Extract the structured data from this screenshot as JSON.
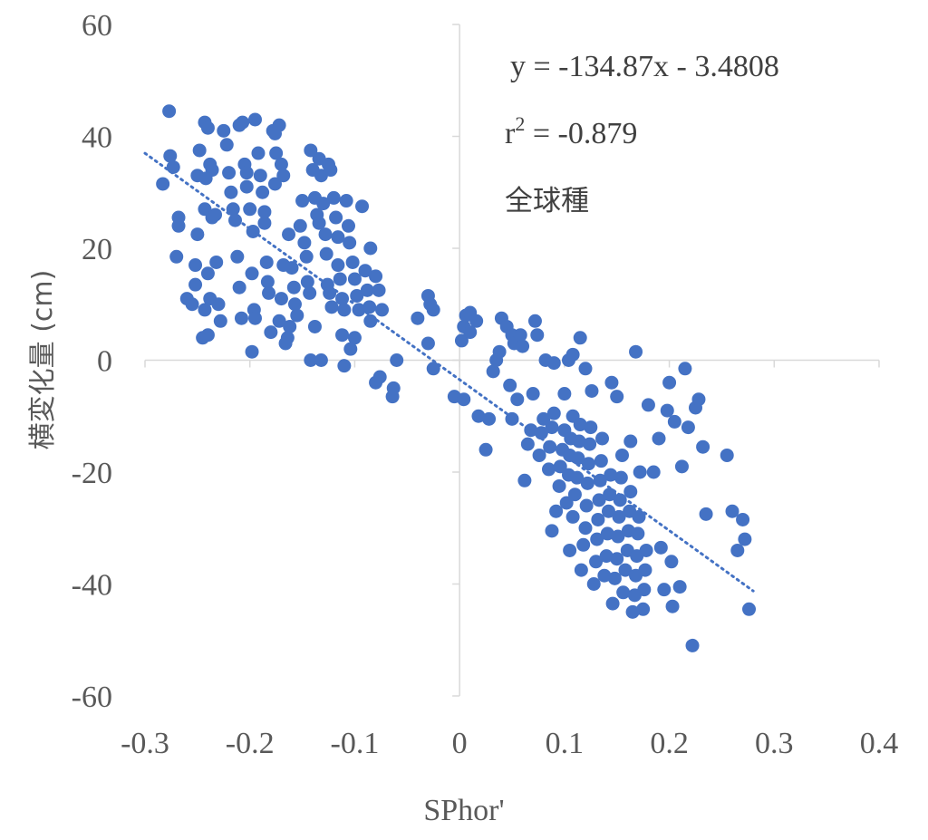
{
  "chart_data": {
    "type": "scatter",
    "title": "",
    "xlabel": "SPhor'",
    "ylabel": "横変化量 (cm)",
    "xlim": [
      -0.3,
      0.4
    ],
    "ylim": [
      -60,
      60
    ],
    "x_ticks": [
      "-0.3",
      "-0.2",
      "-0.1",
      "0",
      "0.1",
      "0.2",
      "0.3",
      "0.4"
    ],
    "y_ticks": [
      "60",
      "40",
      "20",
      "0",
      "-20",
      "-40",
      "-60"
    ],
    "x_tick_values": [
      -0.3,
      -0.2,
      -0.1,
      0,
      0.1,
      0.2,
      0.3,
      0.4
    ],
    "y_tick_values": [
      60,
      40,
      20,
      0,
      -20,
      -40,
      -60
    ],
    "grid": false,
    "marker_color": "#4472C4",
    "trendline": {
      "style": "dotted",
      "color": "#4472C4",
      "slope": -134.87,
      "intercept": -3.4808,
      "x_range": [
        -0.3,
        0.28
      ]
    },
    "annotations": {
      "equation": "y = -134.87x - 3.4808",
      "r_prefix": "r",
      "r_sup": "2",
      "r_value": " = -0.879",
      "label": "全球種"
    },
    "points": [
      [
        -0.277,
        44.5
      ],
      [
        -0.276,
        36.5
      ],
      [
        -0.273,
        34.5
      ],
      [
        -0.283,
        31.5
      ],
      [
        -0.268,
        25.5
      ],
      [
        -0.268,
        24
      ],
      [
        -0.27,
        18.5
      ],
      [
        -0.26,
        11
      ],
      [
        -0.255,
        10
      ],
      [
        -0.252,
        17
      ],
      [
        -0.252,
        13.5
      ],
      [
        -0.25,
        22.5
      ],
      [
        -0.25,
        33
      ],
      [
        -0.248,
        37.5
      ],
      [
        -0.243,
        42.5
      ],
      [
        -0.24,
        41.5
      ],
      [
        -0.238,
        35
      ],
      [
        -0.236,
        34
      ],
      [
        -0.242,
        32.5
      ],
      [
        -0.243,
        27
      ],
      [
        -0.24,
        15.5
      ],
      [
        -0.238,
        11
      ],
      [
        -0.243,
        9
      ],
      [
        -0.245,
        4
      ],
      [
        -0.24,
        4.5
      ],
      [
        -0.236,
        25.5
      ],
      [
        -0.233,
        26
      ],
      [
        -0.232,
        17.5
      ],
      [
        -0.23,
        10
      ],
      [
        -0.228,
        7
      ],
      [
        -0.225,
        41
      ],
      [
        -0.222,
        38.5
      ],
      [
        -0.22,
        33.5
      ],
      [
        -0.218,
        30
      ],
      [
        -0.216,
        27
      ],
      [
        -0.214,
        25
      ],
      [
        -0.212,
        18.5
      ],
      [
        -0.21,
        13
      ],
      [
        -0.208,
        7.5
      ],
      [
        -0.21,
        42
      ],
      [
        -0.207,
        42.5
      ],
      [
        -0.205,
        35
      ],
      [
        -0.203,
        33.5
      ],
      [
        -0.203,
        31
      ],
      [
        -0.2,
        27
      ],
      [
        -0.197,
        23
      ],
      [
        -0.198,
        15.5
      ],
      [
        -0.196,
        9
      ],
      [
        -0.195,
        7.5
      ],
      [
        -0.198,
        1.5
      ],
      [
        -0.195,
        43
      ],
      [
        -0.192,
        37
      ],
      [
        -0.19,
        33
      ],
      [
        -0.188,
        30
      ],
      [
        -0.186,
        26.5
      ],
      [
        -0.186,
        24.5
      ],
      [
        -0.184,
        17.5
      ],
      [
        -0.183,
        14
      ],
      [
        -0.182,
        12
      ],
      [
        -0.18,
        5
      ],
      [
        -0.178,
        41
      ],
      [
        -0.176,
        40.5
      ],
      [
        -0.176,
        31.5
      ],
      [
        -0.175,
        37
      ],
      [
        -0.172,
        42
      ],
      [
        -0.17,
        35
      ],
      [
        -0.168,
        33
      ],
      [
        -0.166,
        3
      ],
      [
        -0.164,
        4
      ],
      [
        -0.162,
        6
      ],
      [
        -0.168,
        17
      ],
      [
        -0.17,
        11
      ],
      [
        -0.172,
        7
      ],
      [
        -0.163,
        22.5
      ],
      [
        -0.16,
        16.5
      ],
      [
        -0.158,
        13
      ],
      [
        -0.157,
        10
      ],
      [
        -0.155,
        8
      ],
      [
        -0.152,
        24
      ],
      [
        -0.15,
        28.5
      ],
      [
        -0.148,
        21
      ],
      [
        -0.146,
        18.5
      ],
      [
        -0.145,
        14
      ],
      [
        -0.143,
        12
      ],
      [
        -0.142,
        37.5
      ],
      [
        -0.14,
        34
      ],
      [
        -0.138,
        29
      ],
      [
        -0.136,
        26
      ],
      [
        -0.134,
        24.5
      ],
      [
        -0.134,
        36
      ],
      [
        -0.132,
        33
      ],
      [
        -0.13,
        28
      ],
      [
        -0.128,
        22.5
      ],
      [
        -0.127,
        19
      ],
      [
        -0.126,
        13.5
      ],
      [
        -0.124,
        12
      ],
      [
        -0.122,
        9.5
      ],
      [
        -0.138,
        6
      ],
      [
        -0.142,
        0
      ],
      [
        -0.132,
        0
      ],
      [
        -0.125,
        35
      ],
      [
        -0.123,
        34
      ],
      [
        -0.12,
        29
      ],
      [
        -0.118,
        25.5
      ],
      [
        -0.116,
        22
      ],
      [
        -0.116,
        17
      ],
      [
        -0.114,
        14.5
      ],
      [
        -0.112,
        11
      ],
      [
        -0.11,
        9
      ],
      [
        -0.108,
        28.5
      ],
      [
        -0.106,
        24
      ],
      [
        -0.105,
        21
      ],
      [
        -0.102,
        17.5
      ],
      [
        -0.1,
        14.5
      ],
      [
        -0.098,
        11.5
      ],
      [
        -0.096,
        9
      ],
      [
        -0.112,
        4.5
      ],
      [
        -0.11,
        -1
      ],
      [
        -0.104,
        2
      ],
      [
        -0.1,
        4
      ],
      [
        -0.093,
        27.5
      ],
      [
        -0.09,
        16
      ],
      [
        -0.088,
        12.5
      ],
      [
        -0.086,
        9.5
      ],
      [
        -0.085,
        7
      ],
      [
        -0.085,
        20
      ],
      [
        -0.08,
        15
      ],
      [
        -0.077,
        12.5
      ],
      [
        -0.074,
        9
      ],
      [
        -0.08,
        -4
      ],
      [
        -0.076,
        -3
      ],
      [
        -0.064,
        -6.5
      ],
      [
        -0.063,
        -5
      ],
      [
        -0.06,
        0
      ],
      [
        -0.04,
        7.5
      ],
      [
        -0.03,
        11.5
      ],
      [
        -0.028,
        10
      ],
      [
        -0.025,
        9
      ],
      [
        -0.03,
        3
      ],
      [
        -0.025,
        -1.5
      ],
      [
        -0.005,
        -6.5
      ],
      [
        0.004,
        -7
      ],
      [
        0.002,
        3.5
      ],
      [
        0.004,
        6
      ],
      [
        0.006,
        8
      ],
      [
        0.01,
        8.5
      ],
      [
        0.01,
        5
      ],
      [
        0.016,
        7
      ],
      [
        0.018,
        -10
      ],
      [
        0.025,
        -16
      ],
      [
        0.028,
        -10.5
      ],
      [
        0.032,
        -2
      ],
      [
        0.035,
        0
      ],
      [
        0.038,
        1.5
      ],
      [
        0.04,
        7.5
      ],
      [
        0.045,
        6
      ],
      [
        0.048,
        -4.5
      ],
      [
        0.05,
        4.5
      ],
      [
        0.052,
        3
      ],
      [
        0.05,
        -10.5
      ],
      [
        0.055,
        -7
      ],
      [
        0.058,
        4.5
      ],
      [
        0.06,
        2.5
      ],
      [
        0.062,
        -21.5
      ],
      [
        0.065,
        -15
      ],
      [
        0.068,
        -12.5
      ],
      [
        0.07,
        -6
      ],
      [
        0.072,
        7
      ],
      [
        0.074,
        4.5
      ],
      [
        0.076,
        -17
      ],
      [
        0.078,
        -13
      ],
      [
        0.08,
        -10.5
      ],
      [
        0.082,
        0
      ],
      [
        0.085,
        -19.5
      ],
      [
        0.086,
        -15.5
      ],
      [
        0.088,
        -12
      ],
      [
        0.09,
        -9.5
      ],
      [
        0.09,
        -0.5
      ],
      [
        0.088,
        -30.5
      ],
      [
        0.092,
        -27
      ],
      [
        0.095,
        -22.5
      ],
      [
        0.096,
        -19
      ],
      [
        0.098,
        -16
      ],
      [
        0.1,
        -12.5
      ],
      [
        0.1,
        -6
      ],
      [
        0.102,
        -25.5
      ],
      [
        0.104,
        -20.5
      ],
      [
        0.105,
        -17
      ],
      [
        0.106,
        -14
      ],
      [
        0.108,
        -10
      ],
      [
        0.108,
        1
      ],
      [
        0.104,
        0
      ],
      [
        0.105,
        -34
      ],
      [
        0.108,
        -28
      ],
      [
        0.11,
        -24
      ],
      [
        0.112,
        -21
      ],
      [
        0.113,
        -17.5
      ],
      [
        0.114,
        -14.5
      ],
      [
        0.115,
        -11.5
      ],
      [
        0.115,
        4
      ],
      [
        0.116,
        -37.5
      ],
      [
        0.118,
        -33
      ],
      [
        0.12,
        -30
      ],
      [
        0.121,
        -26
      ],
      [
        0.122,
        -22
      ],
      [
        0.123,
        -18.5
      ],
      [
        0.124,
        -15
      ],
      [
        0.125,
        -12
      ],
      [
        0.126,
        -5.5
      ],
      [
        0.12,
        -1.5
      ],
      [
        0.128,
        -40
      ],
      [
        0.13,
        -36
      ],
      [
        0.131,
        -32
      ],
      [
        0.132,
        -28.5
      ],
      [
        0.133,
        -25
      ],
      [
        0.134,
        -21.5
      ],
      [
        0.135,
        -18
      ],
      [
        0.136,
        -14
      ],
      [
        0.138,
        -38.5
      ],
      [
        0.14,
        -35
      ],
      [
        0.141,
        -31
      ],
      [
        0.142,
        -27
      ],
      [
        0.143,
        -24
      ],
      [
        0.144,
        -20.5
      ],
      [
        0.145,
        -4
      ],
      [
        0.146,
        -43.5
      ],
      [
        0.148,
        -39
      ],
      [
        0.15,
        -35.5
      ],
      [
        0.151,
        -31.5
      ],
      [
        0.152,
        -28
      ],
      [
        0.153,
        -25
      ],
      [
        0.154,
        -21
      ],
      [
        0.155,
        -17
      ],
      [
        0.15,
        -6.5
      ],
      [
        0.156,
        -41.5
      ],
      [
        0.158,
        -37.5
      ],
      [
        0.16,
        -34
      ],
      [
        0.161,
        -30.5
      ],
      [
        0.162,
        -27
      ],
      [
        0.163,
        -23.5
      ],
      [
        0.163,
        -14.5
      ],
      [
        0.165,
        -45
      ],
      [
        0.167,
        -42
      ],
      [
        0.168,
        -38.5
      ],
      [
        0.169,
        -35
      ],
      [
        0.17,
        -31
      ],
      [
        0.171,
        -28
      ],
      [
        0.172,
        -20
      ],
      [
        0.168,
        1.5
      ],
      [
        0.175,
        -44.5
      ],
      [
        0.176,
        -41
      ],
      [
        0.177,
        -37.5
      ],
      [
        0.178,
        -34
      ],
      [
        0.18,
        -8
      ],
      [
        0.185,
        -20
      ],
      [
        0.19,
        -14
      ],
      [
        0.192,
        -33.5
      ],
      [
        0.195,
        -41
      ],
      [
        0.198,
        -9
      ],
      [
        0.2,
        -4
      ],
      [
        0.202,
        -36
      ],
      [
        0.203,
        -44
      ],
      [
        0.205,
        -11
      ],
      [
        0.21,
        -40.5
      ],
      [
        0.212,
        -19
      ],
      [
        0.215,
        -1.5
      ],
      [
        0.218,
        -12
      ],
      [
        0.222,
        -51
      ],
      [
        0.225,
        -8.5
      ],
      [
        0.228,
        -7
      ],
      [
        0.232,
        -15.5
      ],
      [
        0.235,
        -27.5
      ],
      [
        0.255,
        -17
      ],
      [
        0.26,
        -27
      ],
      [
        0.265,
        -34
      ],
      [
        0.27,
        -28.5
      ],
      [
        0.272,
        -32
      ],
      [
        0.276,
        -44.5
      ]
    ]
  }
}
